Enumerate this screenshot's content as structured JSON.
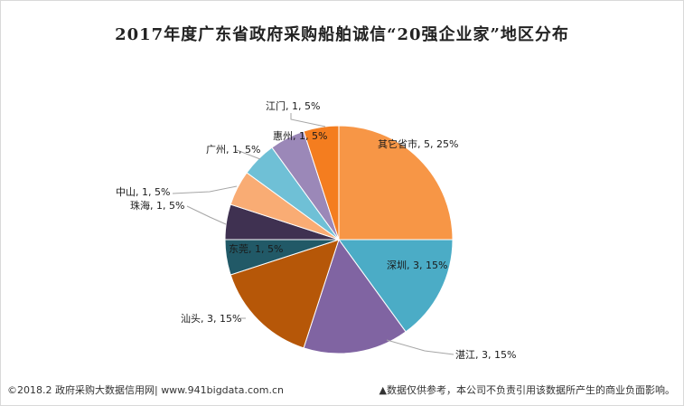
{
  "chart_data": {
    "type": "pie",
    "title": "2017年度广东省政府采购船舶诚信“20强企业家”地区分布",
    "start_angle_deg": 0,
    "direction": "clockwise",
    "slices": [
      {
        "label": "其它省市",
        "value": 5,
        "percent": "25%",
        "color": "#f79646"
      },
      {
        "label": "深圳",
        "value": 3,
        "percent": "15%",
        "color": "#4bacc6"
      },
      {
        "label": "湛江",
        "value": 3,
        "percent": "15%",
        "color": "#8064a2"
      },
      {
        "label": "汕头",
        "value": 3,
        "percent": "15%",
        "color": "#b65708"
      },
      {
        "label": "东莞",
        "value": 1,
        "percent": "5%",
        "color": "#215967"
      },
      {
        "label": "珠海",
        "value": 1,
        "percent": "5%",
        "color": "#3f3151"
      },
      {
        "label": "中山",
        "value": 1,
        "percent": "5%",
        "color": "#f9ac74"
      },
      {
        "label": "广州",
        "value": 1,
        "percent": "5%",
        "color": "#6fc0d6"
      },
      {
        "label": "惠州",
        "value": 1,
        "percent": "5%",
        "color": "#9b88b8"
      },
      {
        "label": "江门",
        "value": 1,
        "percent": "5%",
        "color": "#f47d1f"
      }
    ]
  },
  "footer": {
    "left": "©2018.2 政府采购大数据信用网| www.941bigdata.com.cn",
    "right": "▲数据仅供参考，本公司不负责引用该数据所产生的商业负面影响。"
  }
}
